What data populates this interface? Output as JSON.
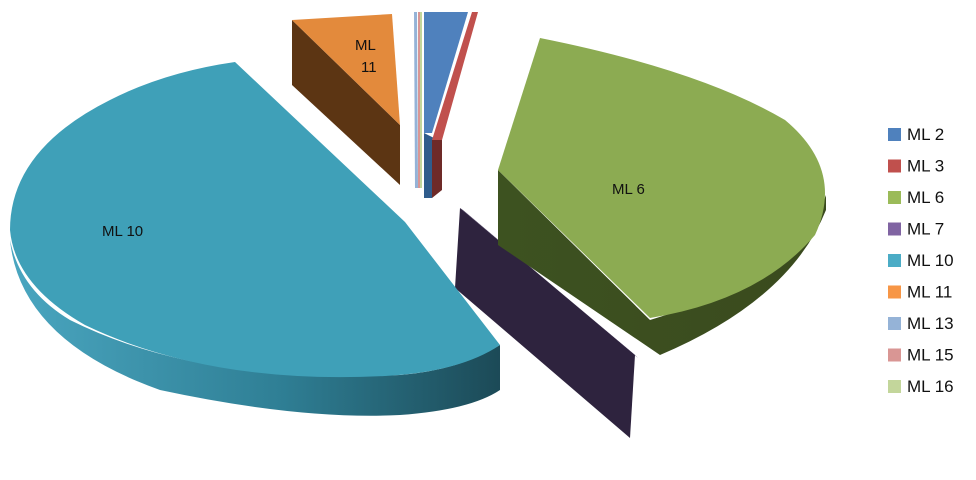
{
  "chart_data": {
    "type": "pie",
    "style": "3d-exploded",
    "title": "",
    "categories": [
      "ML 2",
      "ML 3",
      "ML 6",
      "ML 7",
      "ML 10",
      "ML 11",
      "ML 13",
      "ML 15",
      "ML 16"
    ],
    "values": [
      2.5,
      1.0,
      38.0,
      0.0,
      50.0,
      7.5,
      0.3,
      0.2,
      0.5
    ],
    "data_labels": [
      {
        "series": "ML 6",
        "text": "ML 6"
      },
      {
        "series": "ML 10",
        "text": "ML 10"
      },
      {
        "series": "ML 11",
        "text": "ML 11"
      }
    ],
    "colors": {
      "ML 2": "#4f81bd",
      "ML 3": "#c0504d",
      "ML 6": "#9bbb59",
      "ML 7": "#8064a2",
      "ML 10": "#4bacc6",
      "ML 11": "#f79646",
      "ML 13": "#95b3d7",
      "ML 15": "#d99694",
      "ML 16": "#c3d69b"
    },
    "legend": {
      "position": "right",
      "items": [
        "ML 2",
        "ML 3",
        "ML 6",
        "ML 7",
        "ML 10",
        "ML 11",
        "ML 13",
        "ML 15",
        "ML 16"
      ]
    }
  }
}
